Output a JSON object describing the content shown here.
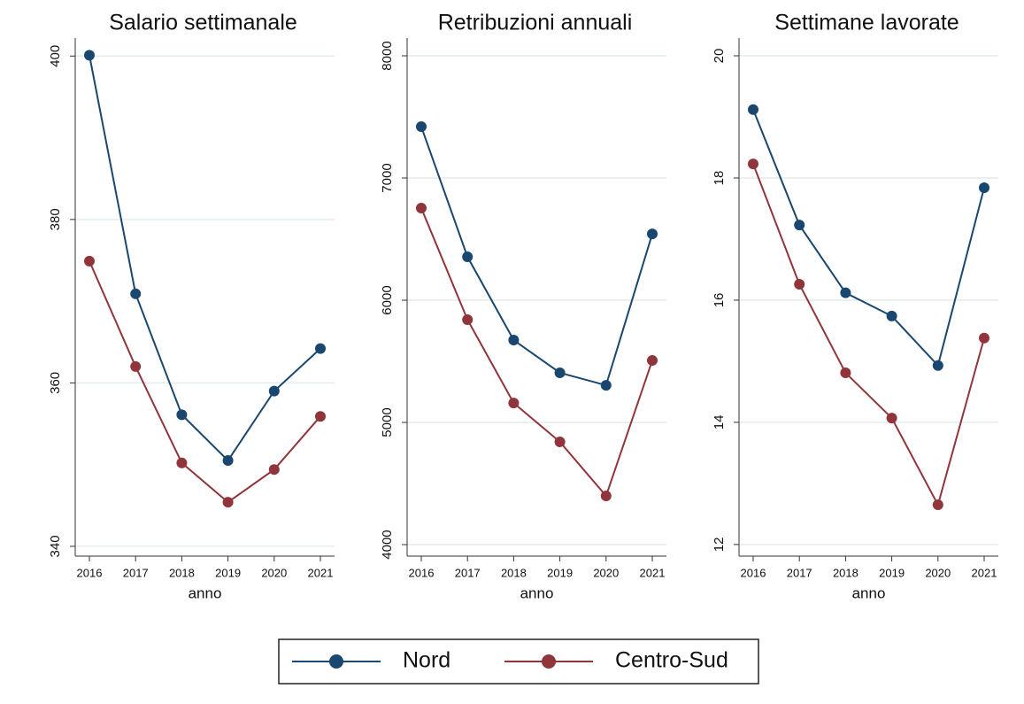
{
  "chart_data": [
    {
      "type": "line",
      "title": "Salario settimanale",
      "x_label": "anno",
      "categories": [
        "2016",
        "2017",
        "2018",
        "2019",
        "2020",
        "2021"
      ],
      "series": [
        {
          "name": "Nord",
          "color": "#1a476f",
          "values": [
            400.1,
            370.9,
            356.1,
            350.5,
            359.0,
            364.2
          ]
        },
        {
          "name": "Centro-Sud",
          "color": "#90353b",
          "values": [
            374.9,
            362.0,
            350.2,
            345.4,
            349.4,
            355.9
          ]
        }
      ],
      "ylim": [
        338.8,
        402.2
      ],
      "yticks": [
        340,
        360,
        380,
        400
      ],
      "grid": true
    },
    {
      "type": "line",
      "title": "Retribuzioni annuali",
      "x_label": "anno",
      "categories": [
        "2016",
        "2017",
        "2018",
        "2019",
        "2020",
        "2021"
      ],
      "series": [
        {
          "color": "#1a476f",
          "values": [
            7420,
            6355,
            5674,
            5406,
            5304,
            6543
          ]
        },
        {
          "color": "#90353b",
          "values": [
            6754,
            5841,
            5159,
            4841,
            4399,
            5507
          ]
        }
      ],
      "ylim": [
        3906,
        8145
      ],
      "yticks": [
        4000,
        5000,
        6000,
        7000,
        8000
      ],
      "grid": true
    },
    {
      "type": "line",
      "title": "Settimane lavorate",
      "x_label": "anno",
      "categories": [
        "2016",
        "2017",
        "2018",
        "2019",
        "2020",
        "2021"
      ],
      "series": [
        {
          "color": "#1a476f",
          "values": [
            19.12,
            17.23,
            16.12,
            15.74,
            14.93,
            17.84
          ]
        },
        {
          "color": "#90353b",
          "values": [
            18.23,
            16.26,
            14.81,
            14.07,
            12.65,
            15.38
          ]
        }
      ],
      "ylim": [
        11.81,
        20.29
      ],
      "yticks": [
        12,
        14,
        16,
        18,
        20
      ],
      "grid": true
    }
  ]
}
